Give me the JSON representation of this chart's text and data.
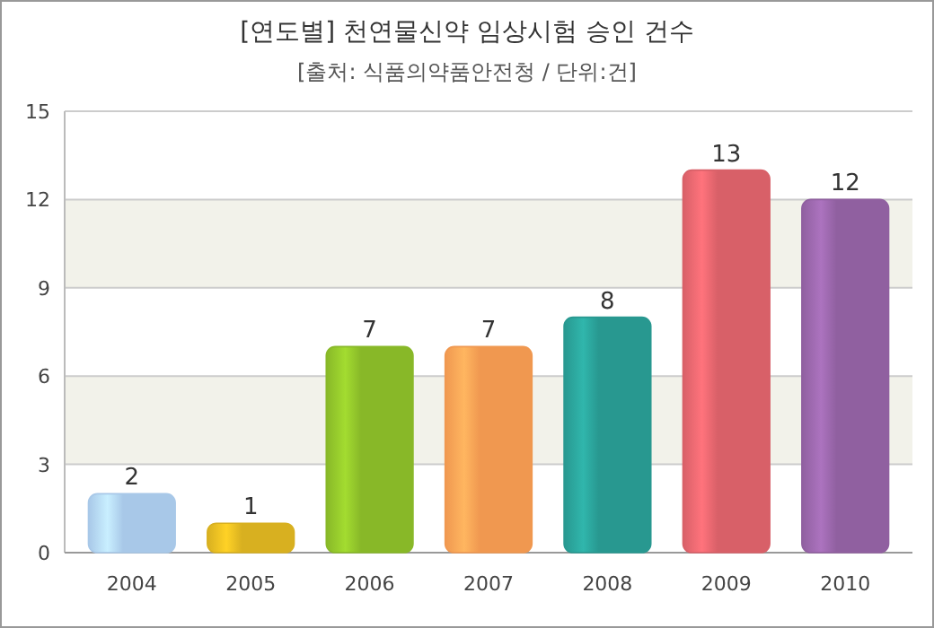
{
  "chart_data": {
    "type": "bar",
    "title": "[연도별] 천연물신약 임상시험 승인 건수",
    "subtitle": "[출처: 식품의약품안전청 / 단위:건]",
    "categories": [
      "2004",
      "2005",
      "2006",
      "2007",
      "2008",
      "2009",
      "2010"
    ],
    "values": [
      2,
      1,
      7,
      7,
      8,
      13,
      12
    ],
    "colors": [
      "#a8c8e8",
      "#d8b020",
      "#88b828",
      "#f09850",
      "#289890",
      "#d86068",
      "#9060a0"
    ],
    "ylim": [
      0,
      15
    ],
    "yticks": [
      0,
      3,
      6,
      9,
      12,
      15
    ],
    "grid": "y",
    "data_labels": true
  }
}
